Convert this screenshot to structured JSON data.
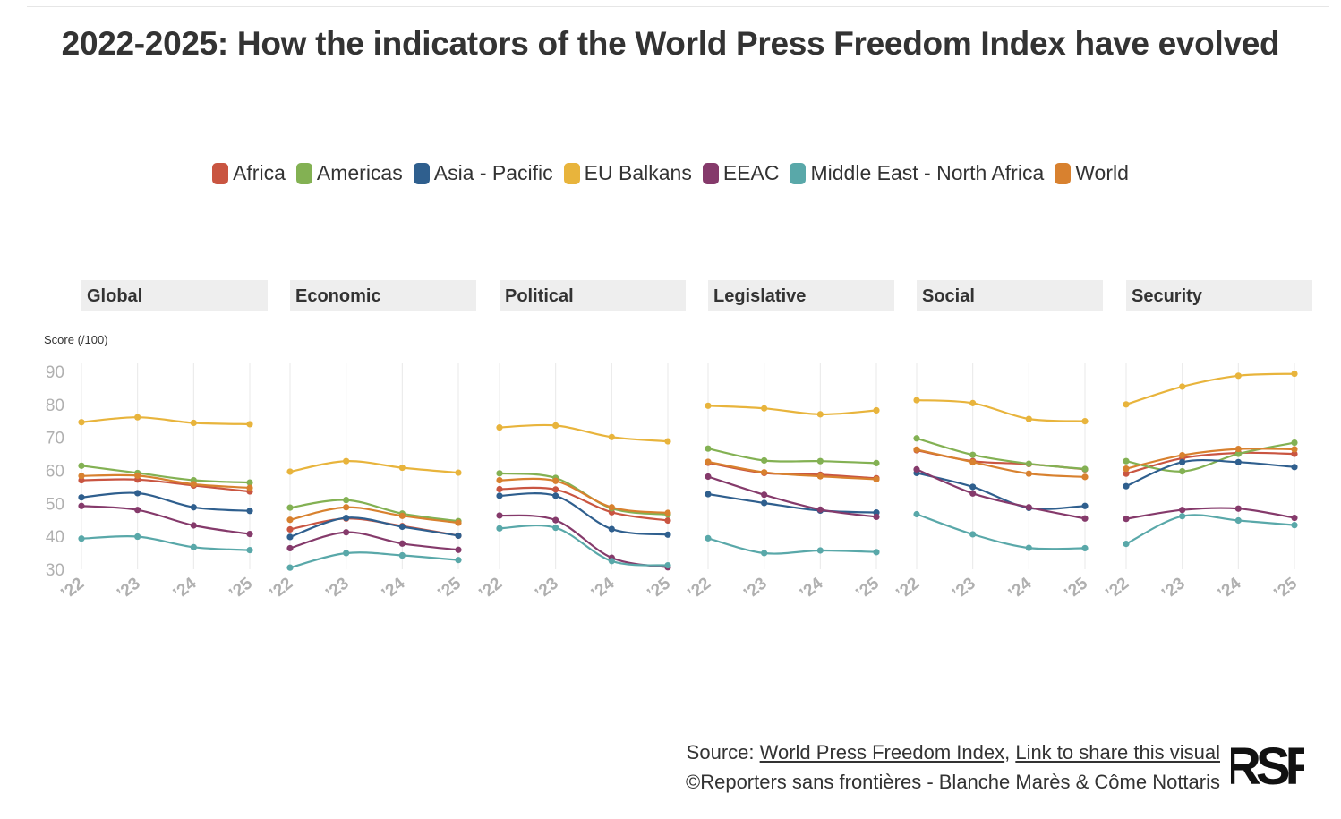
{
  "title": "2022-2025: How the indicators of the World Press Freedom Index have evolved",
  "legend": [
    {
      "name": "Africa",
      "color": "#c95541"
    },
    {
      "name": "Americas",
      "color": "#83b153"
    },
    {
      "name": "Asia - Pacific",
      "color": "#2f5f8e"
    },
    {
      "name": "EU Balkans",
      "color": "#e8b43c"
    },
    {
      "name": "EEAC",
      "color": "#853a6b"
    },
    {
      "name": "Middle East - North Africa",
      "color": "#59a8a9"
    },
    {
      "name": "World",
      "color": "#d8812f"
    }
  ],
  "footer": {
    "source_prefix": "Source: ",
    "source_link": "World Press Freedom Index",
    "separator": ", ",
    "share_link": "Link to share this visual",
    "credit": "©Reporters sans frontières - Blanche Marès & Côme Nottaris"
  },
  "logo_text": "RSF",
  "chart_data": [
    {
      "type": "line",
      "title": "Global",
      "ylabel": "Score (/100)",
      "categories": [
        "’22",
        "’23",
        "’24",
        "’25"
      ],
      "ylim": [
        30,
        90
      ],
      "yticks": [
        30,
        40,
        50,
        60,
        70,
        80,
        90
      ],
      "grid": "vertical",
      "series": [
        {
          "name": "Africa",
          "values": [
            57.0,
            57.2,
            55.4,
            53.6
          ]
        },
        {
          "name": "Americas",
          "values": [
            61.4,
            59.2,
            57.0,
            56.3
          ]
        },
        {
          "name": "Asia - Pacific",
          "values": [
            51.8,
            53.1,
            48.8,
            47.7
          ]
        },
        {
          "name": "EU Balkans",
          "values": [
            74.6,
            76.1,
            74.4,
            74.0
          ]
        },
        {
          "name": "EEAC",
          "values": [
            49.2,
            48.0,
            43.3,
            40.7
          ]
        },
        {
          "name": "Middle East - North Africa",
          "values": [
            39.3,
            39.9,
            36.7,
            35.8
          ]
        },
        {
          "name": "World",
          "values": [
            58.3,
            58.4,
            55.8,
            54.7
          ]
        }
      ]
    },
    {
      "type": "line",
      "title": "Economic",
      "categories": [
        "’22",
        "’23",
        "’24",
        "’25"
      ],
      "ylim": [
        30,
        90
      ],
      "series": [
        {
          "name": "Africa",
          "values": [
            42.1,
            45.4,
            43.1,
            40.2
          ]
        },
        {
          "name": "Americas",
          "values": [
            48.7,
            51.0,
            46.9,
            44.6
          ]
        },
        {
          "name": "Asia - Pacific",
          "values": [
            39.8,
            45.6,
            42.9,
            40.2
          ]
        },
        {
          "name": "EU Balkans",
          "values": [
            59.6,
            62.8,
            60.8,
            59.3
          ]
        },
        {
          "name": "EEAC",
          "values": [
            36.4,
            41.2,
            37.8,
            35.9
          ]
        },
        {
          "name": "Middle East - North Africa",
          "values": [
            30.5,
            34.9,
            34.2,
            32.8
          ]
        },
        {
          "name": "World",
          "values": [
            45.0,
            48.8,
            46.2,
            44.1
          ]
        }
      ]
    },
    {
      "type": "line",
      "title": "Political",
      "categories": [
        "’22",
        "’23",
        "’24",
        "’25"
      ],
      "ylim": [
        30,
        90
      ],
      "series": [
        {
          "name": "Africa",
          "values": [
            54.3,
            54.2,
            47.3,
            44.8
          ]
        },
        {
          "name": "Americas",
          "values": [
            59.1,
            57.7,
            48.5,
            46.6
          ]
        },
        {
          "name": "Asia - Pacific",
          "values": [
            52.3,
            52.3,
            42.2,
            40.5
          ]
        },
        {
          "name": "EU Balkans",
          "values": [
            73.0,
            73.6,
            70.1,
            68.8
          ]
        },
        {
          "name": "EEAC",
          "values": [
            46.3,
            44.9,
            33.5,
            30.6
          ]
        },
        {
          "name": "Middle East - North Africa",
          "values": [
            42.4,
            42.6,
            32.5,
            31.2
          ]
        },
        {
          "name": "World",
          "values": [
            57.0,
            56.8,
            48.8,
            47.1
          ]
        }
      ]
    },
    {
      "type": "line",
      "title": "Legislative",
      "categories": [
        "’22",
        "’23",
        "’24",
        "’25"
      ],
      "ylim": [
        30,
        90
      ],
      "series": [
        {
          "name": "Africa",
          "values": [
            62.3,
            59.2,
            58.7,
            57.6
          ]
        },
        {
          "name": "Americas",
          "values": [
            66.6,
            63.0,
            62.8,
            62.2
          ]
        },
        {
          "name": "Asia - Pacific",
          "values": [
            52.8,
            50.1,
            47.8,
            47.2
          ]
        },
        {
          "name": "EU Balkans",
          "values": [
            79.6,
            78.8,
            77.0,
            78.2
          ]
        },
        {
          "name": "EEAC",
          "values": [
            58.1,
            52.6,
            48.1,
            45.9
          ]
        },
        {
          "name": "Middle East - North Africa",
          "values": [
            39.4,
            34.9,
            35.7,
            35.2
          ]
        },
        {
          "name": "World",
          "values": [
            62.6,
            59.4,
            58.2,
            57.3
          ]
        }
      ]
    },
    {
      "type": "line",
      "title": "Social",
      "categories": [
        "’22",
        "’23",
        "’24",
        "’25"
      ],
      "ylim": [
        30,
        90
      ],
      "series": [
        {
          "name": "Africa",
          "values": [
            66.1,
            62.8,
            61.9,
            60.3
          ]
        },
        {
          "name": "Americas",
          "values": [
            69.7,
            64.7,
            62.0,
            60.4
          ]
        },
        {
          "name": "Asia - Pacific",
          "values": [
            59.2,
            55.0,
            48.6,
            49.2
          ]
        },
        {
          "name": "EU Balkans",
          "values": [
            81.3,
            80.4,
            75.6,
            74.9
          ]
        },
        {
          "name": "EEAC",
          "values": [
            60.3,
            53.0,
            48.8,
            45.4
          ]
        },
        {
          "name": "Middle East - North Africa",
          "values": [
            46.7,
            40.6,
            36.5,
            36.4
          ]
        },
        {
          "name": "World",
          "values": [
            66.3,
            62.5,
            59.0,
            58.0
          ]
        }
      ]
    },
    {
      "type": "line",
      "title": "Security",
      "categories": [
        "’22",
        "’23",
        "’24",
        "’25"
      ],
      "ylim": [
        30,
        90
      ],
      "series": [
        {
          "name": "Africa",
          "values": [
            59.0,
            63.7,
            65.3,
            65.0
          ]
        },
        {
          "name": "Americas",
          "values": [
            62.8,
            59.7,
            65.0,
            68.4
          ]
        },
        {
          "name": "Asia - Pacific",
          "values": [
            55.2,
            62.5,
            62.5,
            61.0
          ]
        },
        {
          "name": "EU Balkans",
          "values": [
            80.0,
            85.4,
            88.7,
            89.3
          ]
        },
        {
          "name": "EEAC",
          "values": [
            45.3,
            48.0,
            48.4,
            45.6
          ]
        },
        {
          "name": "Middle East - North Africa",
          "values": [
            37.7,
            46.1,
            44.8,
            43.4
          ]
        },
        {
          "name": "World",
          "values": [
            60.5,
            64.6,
            66.5,
            66.4
          ]
        }
      ]
    }
  ]
}
